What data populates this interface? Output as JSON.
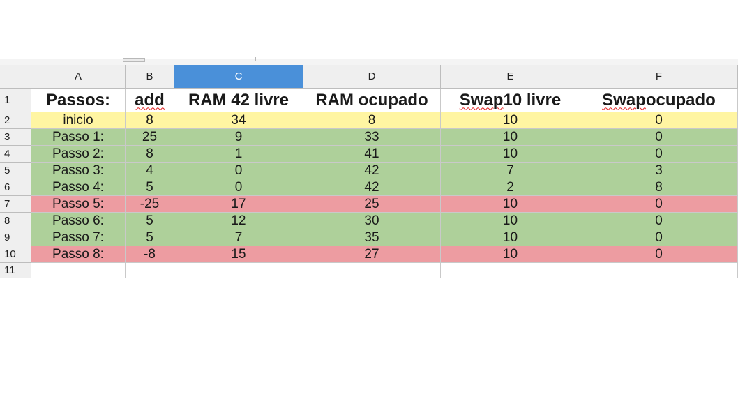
{
  "columns": [
    {
      "id": "A"
    },
    {
      "id": "B"
    },
    {
      "id": "C"
    },
    {
      "id": "D"
    },
    {
      "id": "E"
    },
    {
      "id": "F"
    }
  ],
  "selected_column": "C",
  "header_row": {
    "row_number": "1",
    "cells": [
      "Passos:",
      "add",
      "RAM 42 livre",
      "RAM ocupado",
      "Swap 10 livre",
      "Swap ocupado"
    ],
    "spellcheck_flagged": [
      "add",
      "Swap",
      "Swap"
    ]
  },
  "rows": [
    {
      "n": "2",
      "fill": "yellow",
      "cells": [
        "inicio",
        "8",
        "34",
        "8",
        "10",
        "0"
      ]
    },
    {
      "n": "3",
      "fill": "green",
      "cells": [
        "Passo 1:",
        "25",
        "9",
        "33",
        "10",
        "0"
      ]
    },
    {
      "n": "4",
      "fill": "green",
      "cells": [
        "Passo 2:",
        "8",
        "1",
        "41",
        "10",
        "0"
      ]
    },
    {
      "n": "5",
      "fill": "green",
      "cells": [
        "Passo 3:",
        "4",
        "0",
        "42",
        "7",
        "3"
      ]
    },
    {
      "n": "6",
      "fill": "green",
      "cells": [
        "Passo 4:",
        "5",
        "0",
        "42",
        "2",
        "8"
      ]
    },
    {
      "n": "7",
      "fill": "red",
      "cells": [
        "Passo 5:",
        "-25",
        "17",
        "25",
        "10",
        "0"
      ]
    },
    {
      "n": "8",
      "fill": "green",
      "cells": [
        "Passo 6:",
        "5",
        "12",
        "30",
        "10",
        "0"
      ]
    },
    {
      "n": "9",
      "fill": "green",
      "cells": [
        "Passo 7:",
        "5",
        "7",
        "35",
        "10",
        "0"
      ]
    },
    {
      "n": "10",
      "fill": "red",
      "cells": [
        "Passo 8:",
        "-8",
        "15",
        "27",
        "10",
        "0"
      ]
    }
  ],
  "empty_row": {
    "n": "11"
  },
  "colors": {
    "yellow": "#fff5a2",
    "green": "#aed09a",
    "red": "#ed9ca1",
    "selected_header": "#4a90d9"
  }
}
